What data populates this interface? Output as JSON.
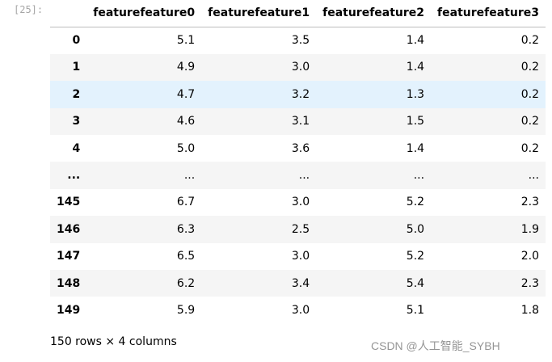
{
  "cell": {
    "prompt": "[25]:"
  },
  "table": {
    "columns": [
      "featurefeature0",
      "featurefeature1",
      "featurefeature2",
      "featurefeature3"
    ],
    "highlight_row": 2,
    "rows": [
      {
        "index": "0",
        "values": [
          "5.1",
          "3.5",
          "1.4",
          "0.2"
        ]
      },
      {
        "index": "1",
        "values": [
          "4.9",
          "3.0",
          "1.4",
          "0.2"
        ]
      },
      {
        "index": "2",
        "values": [
          "4.7",
          "3.2",
          "1.3",
          "0.2"
        ]
      },
      {
        "index": "3",
        "values": [
          "4.6",
          "3.1",
          "1.5",
          "0.2"
        ]
      },
      {
        "index": "4",
        "values": [
          "5.0",
          "3.6",
          "1.4",
          "0.2"
        ]
      },
      {
        "index": "...",
        "values": [
          "...",
          "...",
          "...",
          "..."
        ]
      },
      {
        "index": "145",
        "values": [
          "6.7",
          "3.0",
          "5.2",
          "2.3"
        ]
      },
      {
        "index": "146",
        "values": [
          "6.3",
          "2.5",
          "5.0",
          "1.9"
        ]
      },
      {
        "index": "147",
        "values": [
          "6.5",
          "3.0",
          "5.2",
          "2.0"
        ]
      },
      {
        "index": "148",
        "values": [
          "6.2",
          "3.4",
          "5.4",
          "2.3"
        ]
      },
      {
        "index": "149",
        "values": [
          "5.9",
          "3.0",
          "5.1",
          "1.8"
        ]
      }
    ]
  },
  "footer": {
    "shape_text": "150 rows × 4 columns"
  },
  "watermark": {
    "text": "CSDN @人工智能_SYBH"
  },
  "colors": {
    "stripe": "#f5f5f5",
    "hover": "#e3f2fd",
    "prompt": "#a6a6a6"
  }
}
